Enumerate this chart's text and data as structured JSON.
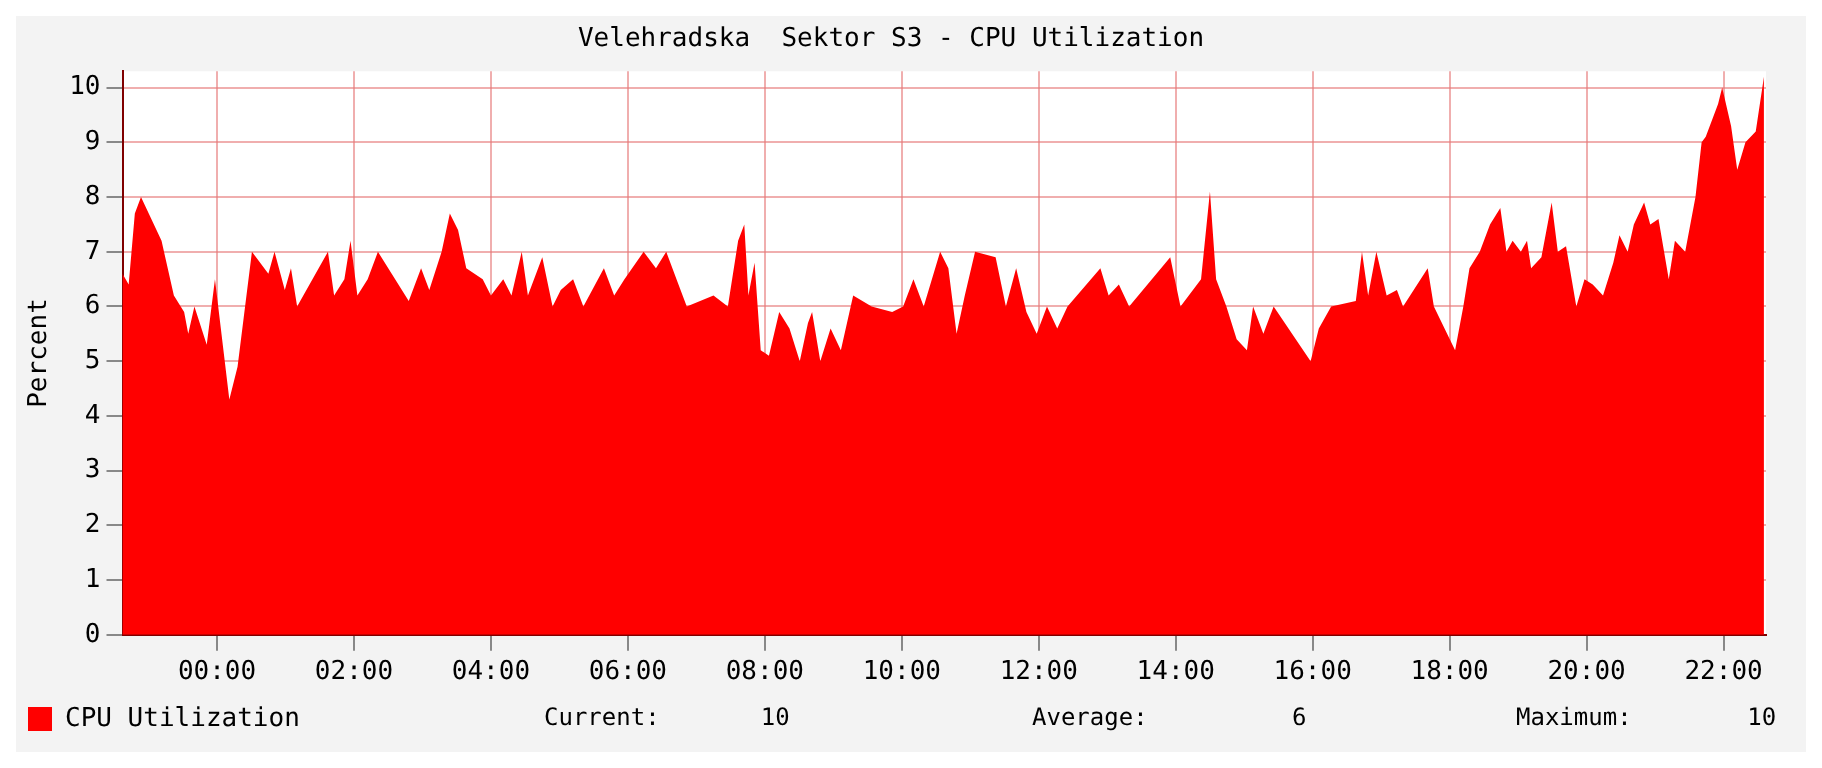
{
  "chart_data": {
    "type": "area",
    "title": "Velehradska  Sektor S3 - CPU Utilization",
    "ylabel": "Percent",
    "xlim": [
      -1.38,
      22.62
    ],
    "xticks": [
      {
        "value": 0,
        "label": "00:00"
      },
      {
        "value": 2,
        "label": "02:00"
      },
      {
        "value": 4,
        "label": "04:00"
      },
      {
        "value": 6,
        "label": "06:00"
      },
      {
        "value": 8,
        "label": "08:00"
      },
      {
        "value": 10,
        "label": "10:00"
      },
      {
        "value": 12,
        "label": "12:00"
      },
      {
        "value": 14,
        "label": "14:00"
      },
      {
        "value": 16,
        "label": "16:00"
      },
      {
        "value": 18,
        "label": "18:00"
      },
      {
        "value": 20,
        "label": "20:00"
      },
      {
        "value": 22,
        "label": "22:00"
      }
    ],
    "ylim": [
      0,
      10.3
    ],
    "yticks": [
      0,
      1,
      2,
      3,
      4,
      5,
      6,
      7,
      8,
      9,
      10
    ],
    "grid": true,
    "legend": "bottom left",
    "annotations": [
      "Current:       10",
      "Average:          6",
      "Maximum:        10"
    ],
    "series": [
      {
        "name": "CPU Utilization",
        "color": "#ff0000",
        "x": [
          -1.38,
          -1.29,
          -1.2,
          -1.11,
          -0.81,
          -0.63,
          -0.48,
          -0.42,
          -0.33,
          -0.15,
          -0.03,
          0.18,
          0.3,
          0.39,
          0.51,
          0.75,
          0.84,
          0.99,
          1.08,
          1.17,
          1.62,
          1.71,
          1.86,
          1.95,
          2.05,
          2.2,
          2.35,
          2.8,
          2.98,
          3.1,
          3.28,
          3.4,
          3.52,
          3.64,
          3.88,
          4.0,
          4.18,
          4.3,
          4.45,
          4.54,
          4.75,
          4.9,
          5.02,
          5.2,
          5.35,
          5.65,
          5.8,
          5.95,
          6.23,
          6.41,
          6.56,
          6.71,
          6.86,
          7.25,
          7.46,
          7.61,
          7.7,
          7.76,
          7.85,
          7.94,
          8.06,
          8.21,
          8.36,
          8.51,
          8.63,
          8.69,
          8.81,
          8.96,
          9.11,
          9.29,
          9.56,
          9.86,
          10.02,
          10.17,
          10.32,
          10.56,
          10.68,
          10.8,
          10.92,
          11.07,
          11.37,
          11.52,
          11.67,
          11.82,
          11.97,
          12.12,
          12.27,
          12.42,
          12.9,
          13.02,
          13.17,
          13.32,
          13.92,
          14.07,
          14.37,
          14.5,
          14.59,
          14.74,
          14.89,
          15.04,
          15.13,
          15.28,
          15.43,
          15.97,
          16.09,
          16.27,
          16.63,
          16.72,
          16.81,
          16.93,
          17.08,
          17.23,
          17.32,
          17.68,
          17.77,
          18.08,
          18.2,
          18.29,
          18.44,
          18.59,
          18.74,
          18.83,
          18.92,
          19.04,
          19.13,
          19.19,
          19.34,
          19.49,
          19.58,
          19.7,
          19.85,
          19.97,
          20.09,
          20.24,
          20.39,
          20.48,
          20.6,
          20.69,
          20.84,
          20.93,
          21.05,
          21.2,
          21.29,
          21.44,
          21.59,
          21.68,
          21.74,
          21.92,
          21.98,
          22.11,
          22.2,
          22.32,
          22.47,
          22.59
        ],
        "values": [
          6.6,
          6.4,
          7.7,
          8.0,
          7.2,
          6.2,
          5.9,
          5.5,
          6.0,
          5.3,
          6.5,
          4.3,
          4.9,
          5.8,
          7.0,
          6.6,
          7.0,
          6.3,
          6.7,
          6.0,
          7.0,
          6.2,
          6.5,
          7.2,
          6.2,
          6.5,
          7.0,
          6.1,
          6.7,
          6.3,
          7.0,
          7.7,
          7.4,
          6.7,
          6.5,
          6.2,
          6.5,
          6.2,
          7.0,
          6.2,
          6.9,
          6.0,
          6.3,
          6.5,
          6.0,
          6.7,
          6.2,
          6.5,
          7.0,
          6.7,
          7.0,
          6.5,
          6.0,
          6.2,
          6.0,
          7.2,
          7.5,
          6.2,
          6.8,
          5.2,
          5.1,
          5.9,
          5.6,
          5.0,
          5.7,
          5.9,
          5.0,
          5.6,
          5.2,
          6.2,
          6.0,
          5.9,
          6.0,
          6.5,
          6.0,
          7.0,
          6.7,
          5.5,
          6.2,
          7.0,
          6.9,
          6.0,
          6.7,
          5.9,
          5.5,
          6.0,
          5.6,
          6.0,
          6.7,
          6.2,
          6.4,
          6.0,
          6.9,
          6.0,
          6.5,
          8.1,
          6.5,
          6.0,
          5.4,
          5.2,
          6.0,
          5.5,
          6.0,
          5.0,
          5.6,
          6.0,
          6.1,
          7.0,
          6.2,
          7.0,
          6.2,
          6.3,
          6.0,
          6.7,
          6.0,
          5.2,
          6.0,
          6.7,
          7.0,
          7.5,
          7.8,
          7.0,
          7.2,
          7.0,
          7.2,
          6.7,
          6.9,
          7.9,
          7.0,
          7.1,
          6.0,
          6.5,
          6.4,
          6.2,
          6.8,
          7.3,
          7.0,
          7.5,
          7.9,
          7.5,
          7.6,
          6.5,
          7.2,
          7.0,
          8.0,
          9.0,
          9.1,
          9.7,
          10.0,
          9.3,
          8.5,
          9.0,
          9.2,
          10.2
        ]
      }
    ]
  }
}
